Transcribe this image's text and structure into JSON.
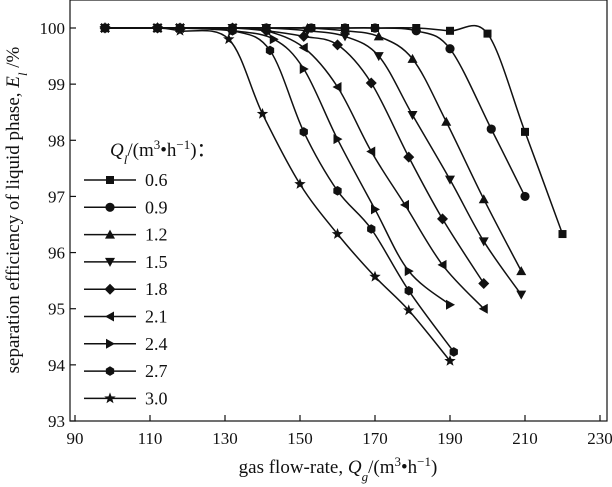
{
  "chart_data": {
    "type": "line",
    "xlabel": "gas flow-rate, Q_g/(m³·h⁻¹)",
    "ylabel": "separation efficiency of liquid phase, E_l /%",
    "xlim": [
      90,
      230
    ],
    "ylim": [
      93,
      100.5
    ],
    "xticks": [
      "90",
      "110",
      "130",
      "150",
      "170",
      "190",
      "210",
      "230"
    ],
    "yticks": [
      "93",
      "94",
      "95",
      "96",
      "97",
      "98",
      "99",
      "100"
    ],
    "grid": false,
    "legend_position": "left",
    "legend_title": "Q_l /(m³·h⁻¹)：",
    "series": [
      {
        "name": "0.6",
        "marker": "square",
        "x": [
          98,
          112,
          118,
          132,
          141,
          153,
          162,
          170,
          181,
          190,
          200,
          210,
          220
        ],
        "y": [
          100,
          100,
          100,
          100,
          100,
          100,
          100,
          100,
          100,
          99.95,
          99.9,
          98.15,
          96.33
        ]
      },
      {
        "name": "0.9",
        "marker": "circle",
        "x": [
          98,
          112,
          118,
          132,
          141,
          153,
          162,
          170,
          181,
          190,
          201,
          210
        ],
        "y": [
          100,
          100,
          100,
          100,
          100,
          100,
          100,
          100,
          99.95,
          99.63,
          98.2,
          97
        ]
      },
      {
        "name": "1.2",
        "marker": "triangle-up",
        "x": [
          98,
          112,
          118,
          132,
          141,
          152,
          162,
          171,
          180,
          189,
          199,
          209
        ],
        "y": [
          100,
          100,
          100,
          100,
          100,
          100,
          99.95,
          99.85,
          99.45,
          98.33,
          96.95,
          95.67
        ]
      },
      {
        "name": "1.5",
        "marker": "triangle-down",
        "x": [
          98,
          112,
          118,
          132,
          141,
          152,
          162,
          171,
          180,
          190,
          199,
          209
        ],
        "y": [
          100,
          100,
          100,
          100,
          100,
          99.95,
          99.85,
          99.5,
          98.45,
          97.3,
          96.2,
          95.25
        ]
      },
      {
        "name": "1.8",
        "marker": "diamond",
        "x": [
          98,
          112,
          118,
          132,
          141,
          151,
          160,
          169,
          179,
          188,
          199
        ],
        "y": [
          100,
          100,
          100,
          100,
          99.95,
          99.85,
          99.7,
          99.02,
          97.7,
          96.6,
          95.45
        ]
      },
      {
        "name": "2.1",
        "marker": "triangle-left",
        "x": [
          98,
          112,
          118,
          132,
          141,
          151,
          160,
          169,
          178,
          188,
          199
        ],
        "y": [
          100,
          100,
          100,
          100,
          99.95,
          99.65,
          98.95,
          97.8,
          96.85,
          95.78,
          95
        ]
      },
      {
        "name": "2.4",
        "marker": "triangle-right",
        "x": [
          98,
          112,
          118,
          132,
          143,
          151,
          160,
          170,
          179,
          190
        ],
        "y": [
          100,
          100,
          100,
          99.95,
          99.8,
          99.27,
          98.02,
          96.77,
          95.67,
          95.07
        ]
      },
      {
        "name": "2.7",
        "marker": "hexagon",
        "x": [
          98,
          112,
          118,
          132,
          142,
          151,
          160,
          169,
          179,
          191
        ],
        "y": [
          100,
          100,
          100,
          99.95,
          99.6,
          98.15,
          97.1,
          96.42,
          95.32,
          94.23
        ]
      },
      {
        "name": "3.0",
        "marker": "star",
        "x": [
          98,
          112,
          118,
          131,
          140,
          150,
          160,
          170,
          179,
          190
        ],
        "y": [
          100,
          100,
          99.95,
          99.8,
          98.47,
          97.22,
          96.33,
          95.57,
          94.97,
          94.07
        ]
      }
    ]
  }
}
